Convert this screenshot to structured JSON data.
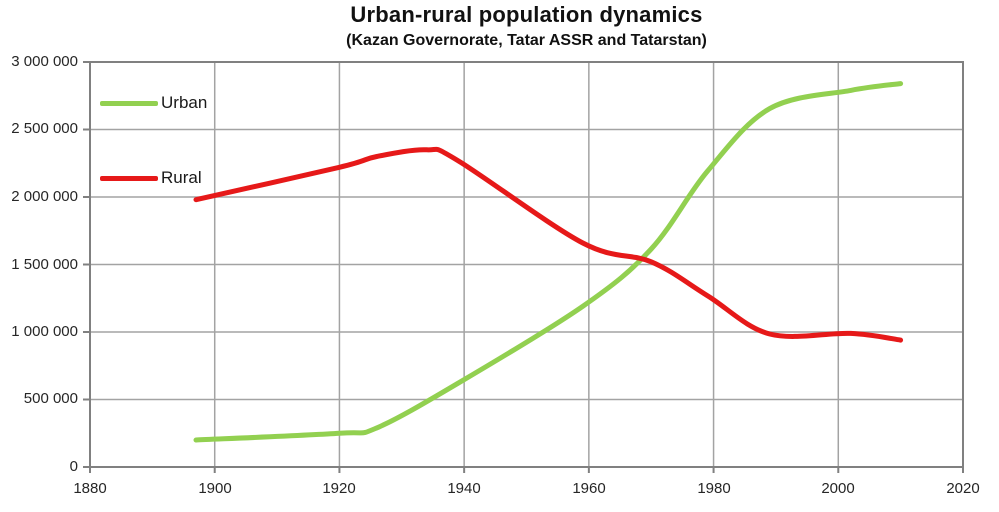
{
  "chart_data": {
    "type": "line",
    "title": "Urban-rural population dynamics",
    "subtitle": "(Kazan Governorate, Tatar ASSR and Tatarstan)",
    "grid": true,
    "legend": {
      "position": "top-left-inside",
      "entries": [
        {
          "label": "Urban",
          "color": "#92d050"
        },
        {
          "label": "Rural",
          "color": "#e61919"
        }
      ]
    },
    "x_axis": {
      "min": 1880,
      "max": 2020,
      "tick_step": 20,
      "tick_labels": [
        "1880",
        "1900",
        "1920",
        "1940",
        "1960",
        "1980",
        "2000",
        "2020"
      ]
    },
    "y_axis": {
      "min": 0,
      "max": 3000000,
      "tick_step": 500000,
      "tick_labels": [
        "0",
        "500 000",
        "1 000 000",
        "1 500 000",
        "2 000 000",
        "2 500 000",
        "3 000 000"
      ]
    },
    "series": [
      {
        "name": "Urban",
        "color": "#92d050",
        "points": [
          [
            1897,
            200000
          ],
          [
            1920,
            250000
          ],
          [
            1926,
            290000
          ],
          [
            1939,
            620000
          ],
          [
            1959,
            1190000
          ],
          [
            1970,
            1615000
          ],
          [
            1979,
            2190000
          ],
          [
            1989,
            2655000
          ],
          [
            2002,
            2790000
          ],
          [
            2010,
            2840000
          ]
        ]
      },
      {
        "name": "Rural",
        "color": "#e61919",
        "points": [
          [
            1897,
            1980000
          ],
          [
            1920,
            2220000
          ],
          [
            1926,
            2300000
          ],
          [
            1934,
            2350000
          ],
          [
            1939,
            2270000
          ],
          [
            1959,
            1660000
          ],
          [
            1970,
            1520000
          ],
          [
            1979,
            1270000
          ],
          [
            1989,
            985000
          ],
          [
            2002,
            990000
          ],
          [
            2010,
            940000
          ]
        ]
      }
    ],
    "grid_color": "#a3a3a3",
    "border_color": "#808080",
    "text_color": "#262626"
  }
}
